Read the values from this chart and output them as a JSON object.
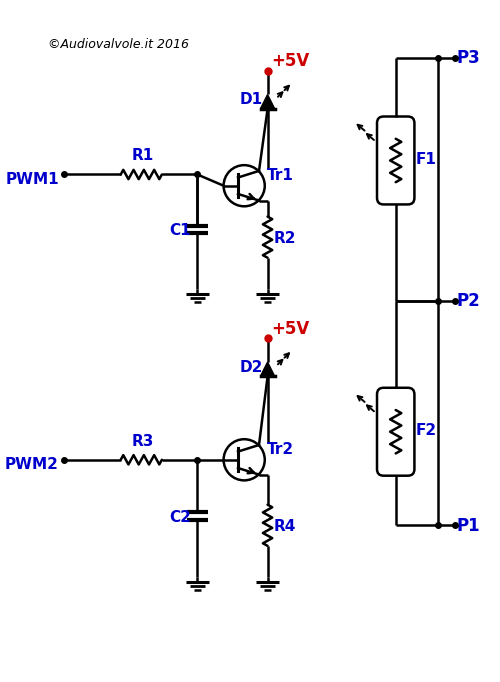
{
  "background_color": "#ffffff",
  "blue_color": "#0000cc",
  "red_color": "#cc0000",
  "black_color": "#000000",
  "copyright": "©Audiovalvole.it 2016",
  "labels": {
    "pwm1": "PWM1",
    "pwm2": "PWM2",
    "r1": "R1",
    "r2": "R2",
    "r3": "R3",
    "r4": "R4",
    "c1": "C1",
    "c2": "C2",
    "d1": "D1",
    "d2": "D2",
    "tr1": "Tr1",
    "tr2": "Tr2",
    "f1": "F1",
    "f2": "F2",
    "p1": "P1",
    "p2": "P2",
    "p3": "P3",
    "vcc": "+5V"
  }
}
